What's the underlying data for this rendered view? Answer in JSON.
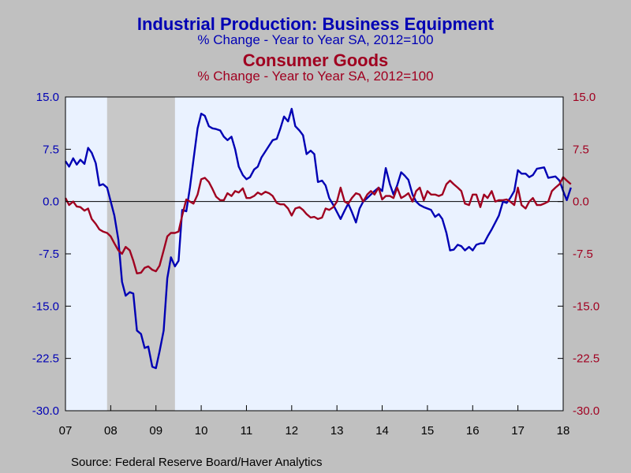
{
  "colors": {
    "background": "#c0c0c0",
    "plot_background": "#eaf2ff",
    "recession_band": "#c8c8c8",
    "series_blue": "#0000b4",
    "series_red": "#a00020"
  },
  "chart_data": {
    "type": "line",
    "title": "Industrial Production: Business Equipment",
    "subtitle": "% Change - Year to Year    SA, 2012=100",
    "title2": "Consumer Goods",
    "subtitle2": "% Change - Year to Year    SA, 2012=100",
    "source": "Source:  Federal Reserve Board/Haver Analytics",
    "x_axis": {
      "range": [
        2007.0,
        2018.0
      ],
      "ticks": [
        2007,
        2008,
        2009,
        2010,
        2011,
        2012,
        2013,
        2014,
        2015,
        2016,
        2017,
        2018
      ],
      "tick_labels": [
        "07",
        "08",
        "09",
        "10",
        "11",
        "12",
        "13",
        "14",
        "15",
        "16",
        "17",
        "18"
      ]
    },
    "y_axis": {
      "range": [
        -30,
        15
      ],
      "ticks": [
        15,
        7.5,
        0,
        -7.5,
        -15,
        -22.5,
        -30
      ],
      "tick_labels": [
        "15.0",
        "7.5",
        "0.0",
        "-7.5",
        "-15.0",
        "-22.5",
        "-30.0"
      ]
    },
    "y_axis_right": {
      "range": [
        -30,
        15
      ],
      "ticks": [
        15,
        7.5,
        0,
        -7.5,
        -15,
        -22.5,
        -30
      ],
      "tick_labels": [
        "15.0",
        "7.5",
        "0.0",
        "-7.5",
        "-15.0",
        "-22.5",
        "-30.0"
      ]
    },
    "recession": {
      "start": 2007.92,
      "end": 2009.42
    },
    "grid": false,
    "zero_line": true,
    "series": [
      {
        "name": "Business Equipment",
        "color": "#0000b4",
        "points": [
          [
            2007.0,
            5.8
          ],
          [
            2007.08,
            5.0
          ],
          [
            2007.17,
            6.2
          ],
          [
            2007.25,
            5.3
          ],
          [
            2007.33,
            6.0
          ],
          [
            2007.42,
            5.4
          ],
          [
            2007.5,
            7.7
          ],
          [
            2007.58,
            7.0
          ],
          [
            2007.67,
            5.5
          ],
          [
            2007.75,
            2.3
          ],
          [
            2007.83,
            2.5
          ],
          [
            2007.92,
            2.0
          ],
          [
            2008.0,
            0.0
          ],
          [
            2008.08,
            -2.0
          ],
          [
            2008.17,
            -5.5
          ],
          [
            2008.25,
            -11.5
          ],
          [
            2008.33,
            -13.5
          ],
          [
            2008.42,
            -13.0
          ],
          [
            2008.5,
            -13.2
          ],
          [
            2008.58,
            -18.5
          ],
          [
            2008.67,
            -19.0
          ],
          [
            2008.75,
            -21.0
          ],
          [
            2008.83,
            -20.8
          ],
          [
            2008.92,
            -23.7
          ],
          [
            2009.0,
            -23.9
          ],
          [
            2009.08,
            -21.5
          ],
          [
            2009.17,
            -18.5
          ],
          [
            2009.25,
            -11.0
          ],
          [
            2009.33,
            -8.0
          ],
          [
            2009.42,
            -9.3
          ],
          [
            2009.5,
            -8.5
          ],
          [
            2009.58,
            -1.2
          ],
          [
            2009.67,
            -1.4
          ],
          [
            2009.75,
            2.0
          ],
          [
            2009.83,
            6.0
          ],
          [
            2009.92,
            10.5
          ],
          [
            2010.0,
            12.6
          ],
          [
            2010.08,
            12.3
          ],
          [
            2010.17,
            10.8
          ],
          [
            2010.25,
            10.5
          ],
          [
            2010.33,
            10.4
          ],
          [
            2010.42,
            10.2
          ],
          [
            2010.5,
            9.3
          ],
          [
            2010.58,
            8.8
          ],
          [
            2010.67,
            9.3
          ],
          [
            2010.75,
            7.5
          ],
          [
            2010.83,
            5.0
          ],
          [
            2010.92,
            3.8
          ],
          [
            2011.0,
            3.2
          ],
          [
            2011.08,
            3.5
          ],
          [
            2011.17,
            4.6
          ],
          [
            2011.25,
            5.0
          ],
          [
            2011.33,
            6.3
          ],
          [
            2011.42,
            7.2
          ],
          [
            2011.5,
            8.0
          ],
          [
            2011.58,
            8.8
          ],
          [
            2011.67,
            9.0
          ],
          [
            2011.75,
            10.5
          ],
          [
            2011.83,
            12.2
          ],
          [
            2011.92,
            11.5
          ],
          [
            2012.0,
            13.3
          ],
          [
            2012.08,
            10.8
          ],
          [
            2012.17,
            10.2
          ],
          [
            2012.25,
            9.5
          ],
          [
            2012.33,
            6.8
          ],
          [
            2012.42,
            7.3
          ],
          [
            2012.5,
            6.8
          ],
          [
            2012.58,
            2.8
          ],
          [
            2012.67,
            3.0
          ],
          [
            2012.75,
            2.3
          ],
          [
            2012.83,
            0.5
          ],
          [
            2012.92,
            -0.5
          ],
          [
            2013.0,
            -1.5
          ],
          [
            2013.08,
            -2.5
          ],
          [
            2013.17,
            -1.3
          ],
          [
            2013.25,
            -0.3
          ],
          [
            2013.33,
            -1.5
          ],
          [
            2013.42,
            -3.0
          ],
          [
            2013.5,
            -1.0
          ],
          [
            2013.58,
            0.0
          ],
          [
            2013.67,
            0.5
          ],
          [
            2013.75,
            1.0
          ],
          [
            2013.83,
            1.5
          ],
          [
            2013.92,
            2.0
          ],
          [
            2014.0,
            1.5
          ],
          [
            2014.08,
            4.8
          ],
          [
            2014.17,
            2.5
          ],
          [
            2014.25,
            1.0
          ],
          [
            2014.33,
            2.3
          ],
          [
            2014.42,
            4.2
          ],
          [
            2014.5,
            3.7
          ],
          [
            2014.58,
            3.1
          ],
          [
            2014.67,
            1.0
          ],
          [
            2014.75,
            0.0
          ],
          [
            2014.83,
            -0.5
          ],
          [
            2014.92,
            -0.8
          ],
          [
            2015.0,
            -1.0
          ],
          [
            2015.08,
            -1.2
          ],
          [
            2015.17,
            -2.2
          ],
          [
            2015.25,
            -1.8
          ],
          [
            2015.33,
            -2.5
          ],
          [
            2015.42,
            -4.5
          ],
          [
            2015.5,
            -7.0
          ],
          [
            2015.58,
            -6.9
          ],
          [
            2015.67,
            -6.2
          ],
          [
            2015.75,
            -6.4
          ],
          [
            2015.83,
            -7.0
          ],
          [
            2015.92,
            -6.5
          ],
          [
            2016.0,
            -7.0
          ],
          [
            2016.08,
            -6.2
          ],
          [
            2016.17,
            -6.0
          ],
          [
            2016.25,
            -6.0
          ],
          [
            2016.33,
            -5.0
          ],
          [
            2016.42,
            -4.0
          ],
          [
            2016.5,
            -3.0
          ],
          [
            2016.58,
            -2.0
          ],
          [
            2016.67,
            0.0
          ],
          [
            2016.75,
            -0.2
          ],
          [
            2016.83,
            0.5
          ],
          [
            2016.92,
            1.5
          ],
          [
            2017.0,
            4.5
          ],
          [
            2017.08,
            4.0
          ],
          [
            2017.17,
            4.0
          ],
          [
            2017.25,
            3.5
          ],
          [
            2017.33,
            3.8
          ],
          [
            2017.42,
            4.7
          ],
          [
            2017.5,
            4.8
          ],
          [
            2017.58,
            4.9
          ],
          [
            2017.67,
            3.4
          ],
          [
            2017.75,
            3.5
          ],
          [
            2017.83,
            3.6
          ],
          [
            2017.92,
            3.0
          ],
          [
            2018.0,
            1.5
          ],
          [
            2018.08,
            0.2
          ],
          [
            2018.17,
            2.0
          ]
        ]
      },
      {
        "name": "Consumer Goods",
        "color": "#a00020",
        "points": [
          [
            2007.0,
            0.5
          ],
          [
            2007.08,
            -0.5
          ],
          [
            2007.17,
            0.0
          ],
          [
            2007.25,
            -0.7
          ],
          [
            2007.33,
            -0.8
          ],
          [
            2007.42,
            -1.3
          ],
          [
            2007.5,
            -1.0
          ],
          [
            2007.58,
            -2.5
          ],
          [
            2007.67,
            -3.2
          ],
          [
            2007.75,
            -4.0
          ],
          [
            2007.83,
            -4.3
          ],
          [
            2007.92,
            -4.5
          ],
          [
            2008.0,
            -5.0
          ],
          [
            2008.08,
            -6.0
          ],
          [
            2008.17,
            -7.0
          ],
          [
            2008.25,
            -7.5
          ],
          [
            2008.33,
            -6.5
          ],
          [
            2008.42,
            -7.0
          ],
          [
            2008.5,
            -8.5
          ],
          [
            2008.58,
            -10.3
          ],
          [
            2008.67,
            -10.2
          ],
          [
            2008.75,
            -9.5
          ],
          [
            2008.83,
            -9.3
          ],
          [
            2008.92,
            -9.8
          ],
          [
            2009.0,
            -10.0
          ],
          [
            2009.08,
            -9.2
          ],
          [
            2009.17,
            -7.0
          ],
          [
            2009.25,
            -5.0
          ],
          [
            2009.33,
            -4.5
          ],
          [
            2009.42,
            -4.5
          ],
          [
            2009.5,
            -4.3
          ],
          [
            2009.58,
            -2.0
          ],
          [
            2009.67,
            0.3
          ],
          [
            2009.75,
            0.0
          ],
          [
            2009.83,
            -0.3
          ],
          [
            2009.92,
            1.0
          ],
          [
            2010.0,
            3.2
          ],
          [
            2010.08,
            3.4
          ],
          [
            2010.17,
            2.8
          ],
          [
            2010.25,
            1.8
          ],
          [
            2010.33,
            0.7
          ],
          [
            2010.42,
            0.2
          ],
          [
            2010.5,
            0.2
          ],
          [
            2010.58,
            1.2
          ],
          [
            2010.67,
            0.8
          ],
          [
            2010.75,
            1.5
          ],
          [
            2010.83,
            1.3
          ],
          [
            2010.92,
            1.9
          ],
          [
            2011.0,
            0.5
          ],
          [
            2011.08,
            0.5
          ],
          [
            2011.17,
            0.8
          ],
          [
            2011.25,
            1.3
          ],
          [
            2011.33,
            1.0
          ],
          [
            2011.42,
            1.4
          ],
          [
            2011.5,
            1.2
          ],
          [
            2011.58,
            0.8
          ],
          [
            2011.67,
            -0.2
          ],
          [
            2011.75,
            -0.4
          ],
          [
            2011.83,
            -0.4
          ],
          [
            2011.92,
            -1.0
          ],
          [
            2012.0,
            -2.0
          ],
          [
            2012.08,
            -1.0
          ],
          [
            2012.17,
            -0.8
          ],
          [
            2012.25,
            -1.2
          ],
          [
            2012.33,
            -1.8
          ],
          [
            2012.42,
            -2.3
          ],
          [
            2012.5,
            -2.2
          ],
          [
            2012.58,
            -2.5
          ],
          [
            2012.67,
            -2.3
          ],
          [
            2012.75,
            -1.0
          ],
          [
            2012.83,
            -1.2
          ],
          [
            2012.92,
            -0.8
          ],
          [
            2013.0,
            0.0
          ],
          [
            2013.08,
            2.0
          ],
          [
            2013.17,
            0.0
          ],
          [
            2013.25,
            -0.3
          ],
          [
            2013.33,
            0.5
          ],
          [
            2013.42,
            1.2
          ],
          [
            2013.5,
            1.0
          ],
          [
            2013.58,
            0.0
          ],
          [
            2013.67,
            1.0
          ],
          [
            2013.75,
            1.5
          ],
          [
            2013.83,
            1.0
          ],
          [
            2013.92,
            2.0
          ],
          [
            2014.0,
            0.3
          ],
          [
            2014.08,
            0.8
          ],
          [
            2014.17,
            0.8
          ],
          [
            2014.25,
            0.5
          ],
          [
            2014.33,
            2.0
          ],
          [
            2014.42,
            0.5
          ],
          [
            2014.5,
            0.8
          ],
          [
            2014.58,
            1.2
          ],
          [
            2014.67,
            0.0
          ],
          [
            2014.75,
            1.5
          ],
          [
            2014.83,
            2.0
          ],
          [
            2014.92,
            0.2
          ],
          [
            2015.0,
            1.5
          ],
          [
            2015.08,
            1.0
          ],
          [
            2015.17,
            1.0
          ],
          [
            2015.25,
            0.8
          ],
          [
            2015.33,
            1.0
          ],
          [
            2015.42,
            2.5
          ],
          [
            2015.5,
            3.0
          ],
          [
            2015.58,
            2.5
          ],
          [
            2015.67,
            2.0
          ],
          [
            2015.75,
            1.5
          ],
          [
            2015.83,
            -0.3
          ],
          [
            2015.92,
            -0.5
          ],
          [
            2016.0,
            1.0
          ],
          [
            2016.08,
            1.0
          ],
          [
            2016.17,
            -0.8
          ],
          [
            2016.25,
            1.0
          ],
          [
            2016.33,
            0.5
          ],
          [
            2016.42,
            1.5
          ],
          [
            2016.5,
            0.0
          ],
          [
            2016.58,
            0.2
          ],
          [
            2016.67,
            0.2
          ],
          [
            2016.75,
            0.3
          ],
          [
            2016.83,
            0.0
          ],
          [
            2016.92,
            -0.5
          ],
          [
            2017.0,
            2.0
          ],
          [
            2017.08,
            -0.5
          ],
          [
            2017.17,
            -1.0
          ],
          [
            2017.25,
            0.0
          ],
          [
            2017.33,
            0.5
          ],
          [
            2017.42,
            -0.5
          ],
          [
            2017.5,
            -0.5
          ],
          [
            2017.58,
            -0.3
          ],
          [
            2017.67,
            0.0
          ],
          [
            2017.75,
            1.5
          ],
          [
            2017.83,
            2.0
          ],
          [
            2017.92,
            2.5
          ],
          [
            2018.0,
            3.5
          ],
          [
            2018.08,
            3.0
          ],
          [
            2018.17,
            2.5
          ]
        ]
      }
    ]
  }
}
